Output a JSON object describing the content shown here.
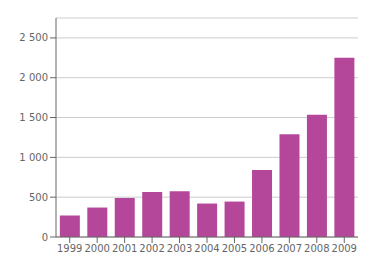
{
  "chart_data": {
    "type": "bar",
    "categories": [
      "1999",
      "2000",
      "2001",
      "2002",
      "2003",
      "2004",
      "2005",
      "2006",
      "2007",
      "2008",
      "2009"
    ],
    "values": [
      270,
      370,
      490,
      565,
      575,
      420,
      445,
      840,
      1290,
      1535,
      2250
    ],
    "color": "#b5479b",
    "ylim": [
      0,
      2750
    ],
    "yticks": [
      0,
      500,
      {
        "value": 1000,
        "label": "1 000"
      },
      {
        "value": 1500,
        "label": "1 500"
      },
      {
        "value": 2000,
        "label": "2 000"
      },
      {
        "value": 2500,
        "label": "2 500"
      }
    ],
    "grid": true
  }
}
